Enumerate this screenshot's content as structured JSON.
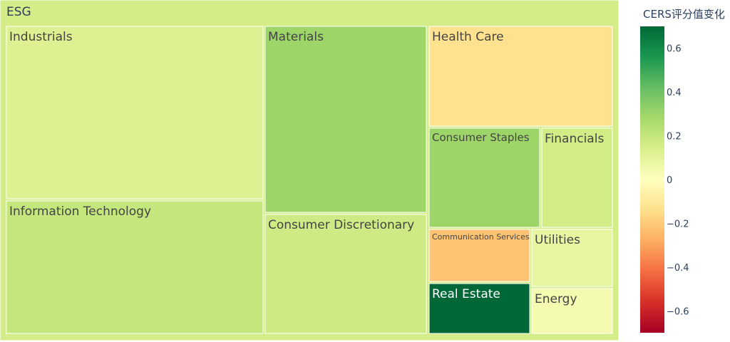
{
  "chart_data": {
    "type": "treemap",
    "title": "",
    "root": {
      "label": "ESG",
      "value": 0.15
    },
    "nodes": [
      {
        "label": "Industrials",
        "value": 0.12
      },
      {
        "label": "Information Technology",
        "value": 0.2
      },
      {
        "label": "Materials",
        "value": 0.3
      },
      {
        "label": "Consumer Discretionary",
        "value": 0.17
      },
      {
        "label": "Health Care",
        "value": -0.13
      },
      {
        "label": "Consumer Staples",
        "value": 0.3
      },
      {
        "label": "Financials",
        "value": 0.16
      },
      {
        "label": "Communication Services",
        "value": -0.22
      },
      {
        "label": "Utilities",
        "value": 0.08
      },
      {
        "label": "Real Estate",
        "value": 0.7
      },
      {
        "label": "Energy",
        "value": 0.04
      }
    ],
    "colorbar": {
      "title": "CERS评分值变化",
      "ticks": [
        "0.6",
        "0.4",
        "0.2",
        "0",
        "−0.2",
        "−0.4",
        "−0.6"
      ],
      "tick_values": [
        0.6,
        0.4,
        0.2,
        0,
        -0.2,
        -0.4,
        -0.6
      ],
      "range": [
        -0.7,
        0.7
      ],
      "colorscale": "RdYlGn"
    }
  }
}
